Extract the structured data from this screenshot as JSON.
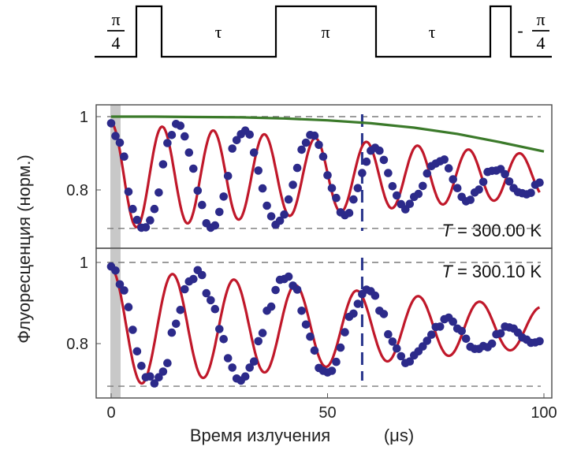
{
  "pulse_sequence": {
    "labels": {
      "first": {
        "num": "π",
        "den": "4"
      },
      "tau1": "τ",
      "pi": "π",
      "tau2": "τ",
      "last": {
        "sign": "-",
        "num": "π",
        "den": "4"
      }
    }
  },
  "chart_data": {
    "type": "scatter",
    "xlabel": "Время излучения",
    "xunit": "(μs)",
    "ylabel": "Флуоресценция (норм.)",
    "x_ticks": [
      "0",
      "50",
      "100"
    ],
    "y_ticks": [
      "1",
      "0.8"
    ],
    "xlim": [
      -2,
      100
    ],
    "ylim": [
      0.67,
      1.02
    ],
    "dashed_marker_x": 58,
    "gray_band_x": [
      0,
      2
    ],
    "colors": {
      "points": "#2c2a8a",
      "fit": "#c0182a",
      "envelope": "#3b7a2a",
      "marker": "#27348b",
      "band": "#c8c8c8",
      "dashes": "#7a7a7a"
    },
    "panels": [
      {
        "annotation": {
          "var": "T",
          "text": "= 300.00 K"
        },
        "model": {
          "period": 11.8,
          "phase": 0,
          "baseline": 0.838,
          "amp_start": 0.145,
          "amp_end": 0.058,
          "fit_y0": 0.985
        },
        "envelope": {
          "x": [
            0,
            10,
            20,
            30,
            40,
            50,
            60,
            70,
            80,
            90,
            100
          ],
          "y": [
            1.0,
            1.0,
            0.999,
            0.998,
            0.995,
            0.99,
            0.982,
            0.97,
            0.953,
            0.93,
            0.905
          ]
        },
        "ref_lines": [
          1.0,
          0.695
        ],
        "points": {
          "x": [
            0,
            1,
            2,
            3,
            4,
            5,
            6,
            7,
            8,
            9,
            10,
            11,
            12,
            13,
            14,
            15,
            16,
            17,
            18,
            19,
            20,
            21,
            22,
            23,
            24,
            25,
            26,
            27,
            28,
            29,
            30,
            31,
            32,
            33,
            34,
            35,
            36,
            37,
            38,
            39,
            40,
            41,
            42,
            43,
            44,
            45,
            46,
            47,
            48,
            49,
            50,
            51,
            52,
            53,
            54,
            55,
            56,
            57,
            58,
            59,
            60,
            61,
            62,
            63,
            64,
            65,
            66,
            67,
            68,
            69,
            70,
            71,
            72,
            73,
            74,
            75,
            76,
            77,
            78,
            79,
            80,
            81,
            82,
            83,
            84,
            85,
            86,
            87,
            88,
            89,
            90,
            91,
            92,
            93,
            94,
            95,
            96,
            97,
            98,
            99
          ],
          "y": [
            0.982,
            0.947,
            0.929,
            0.891,
            0.795,
            0.748,
            0.718,
            0.697,
            0.698,
            0.717,
            0.748,
            0.793,
            0.87,
            0.928,
            0.95,
            0.98,
            0.975,
            0.946,
            0.902,
            0.858,
            0.798,
            0.759,
            0.709,
            0.697,
            0.703,
            0.74,
            0.782,
            0.838,
            0.913,
            0.936,
            0.952,
            0.962,
            0.951,
            0.902,
            0.853,
            0.804,
            0.757,
            0.728,
            0.705,
            0.716,
            0.733,
            0.774,
            0.814,
            0.86,
            0.91,
            0.929,
            0.95,
            0.948,
            0.923,
            0.891,
            0.84,
            0.805,
            0.778,
            0.739,
            0.731,
            0.737,
            0.774,
            0.805,
            0.846,
            0.877,
            0.907,
            0.915,
            0.907,
            0.882,
            0.846,
            0.81,
            0.785,
            0.761,
            0.747,
            0.762,
            0.781,
            0.789,
            0.811,
            0.845,
            0.865,
            0.872,
            0.878,
            0.883,
            0.859,
            0.829,
            0.805,
            0.781,
            0.769,
            0.773,
            0.793,
            0.801,
            0.822,
            0.849,
            0.852,
            0.853,
            0.857,
            0.843,
            0.823,
            0.805,
            0.794,
            0.791,
            0.788,
            0.792,
            0.814,
            0.82
          ]
        }
      },
      {
        "annotation": {
          "var": "T",
          "text": "= 300.10 K"
        },
        "model": {
          "period": 14.2,
          "phase": 0,
          "baseline": 0.84,
          "amp_start": 0.145,
          "amp_end": 0.05,
          "fit_y0": 0.985
        },
        "envelope": null,
        "ref_lines": [
          1.0,
          0.695
        ],
        "points": {
          "x": [
            0,
            1,
            2,
            3,
            4,
            5,
            6,
            7,
            8,
            9,
            10,
            11,
            12,
            13,
            14,
            15,
            16,
            17,
            18,
            19,
            20,
            21,
            22,
            23,
            24,
            25,
            26,
            27,
            28,
            29,
            30,
            31,
            32,
            33,
            34,
            35,
            36,
            37,
            38,
            39,
            40,
            41,
            42,
            43,
            44,
            45,
            46,
            47,
            48,
            49,
            50,
            51,
            52,
            53,
            54,
            55,
            56,
            57,
            58,
            59,
            60,
            61,
            62,
            63,
            64,
            65,
            66,
            67,
            68,
            69,
            70,
            71,
            72,
            73,
            74,
            75,
            76,
            77,
            78,
            79,
            80,
            81,
            82,
            83,
            84,
            85,
            86,
            87,
            88,
            89,
            90,
            91,
            92,
            93,
            94,
            95,
            96,
            97,
            98,
            99
          ],
          "y": [
            0.99,
            0.98,
            0.946,
            0.931,
            0.89,
            0.834,
            0.781,
            0.745,
            0.717,
            0.719,
            0.702,
            0.717,
            0.731,
            0.752,
            0.827,
            0.849,
            0.883,
            0.934,
            0.953,
            0.959,
            0.981,
            0.969,
            0.924,
            0.907,
            0.885,
            0.836,
            0.811,
            0.764,
            0.741,
            0.714,
            0.709,
            0.719,
            0.741,
            0.756,
            0.806,
            0.826,
            0.881,
            0.891,
            0.932,
            0.957,
            0.959,
            0.965,
            0.943,
            0.933,
            0.881,
            0.847,
            0.817,
            0.783,
            0.74,
            0.733,
            0.729,
            0.733,
            0.755,
            0.79,
            0.828,
            0.866,
            0.874,
            0.898,
            0.922,
            0.933,
            0.929,
            0.918,
            0.881,
            0.873,
            0.823,
            0.805,
            0.788,
            0.769,
            0.752,
            0.756,
            0.771,
            0.781,
            0.793,
            0.807,
            0.822,
            0.841,
            0.842,
            0.86,
            0.864,
            0.854,
            0.837,
            0.831,
            0.812,
            0.792,
            0.787,
            0.787,
            0.794,
            0.791,
            0.8,
            0.823,
            0.825,
            0.842,
            0.84,
            0.837,
            0.827,
            0.815,
            0.81,
            0.802,
            0.803,
            0.806
          ]
        }
      }
    ]
  }
}
